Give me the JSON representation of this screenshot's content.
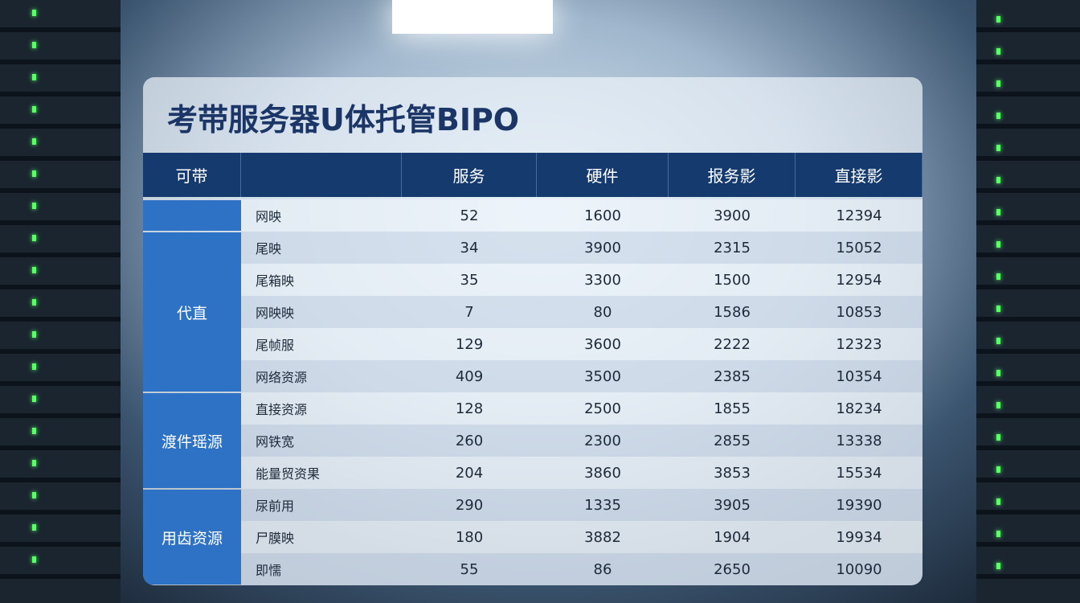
{
  "header": {
    "title": "考带服务器U体托管BIPO"
  },
  "table": {
    "columns": [
      "可带",
      "服务",
      "硬件",
      "报务影",
      "直接影"
    ],
    "groups": [
      {
        "label": "",
        "rows": 1
      },
      {
        "label": "代直",
        "rows": 5
      },
      {
        "label": "渡件瑶源",
        "rows": 3
      },
      {
        "label": "用齿资源",
        "rows": 3
      }
    ],
    "rows": [
      [
        "网映",
        52,
        1600,
        3900,
        12394
      ],
      [
        "尾映",
        34,
        3900,
        2315,
        15052
      ],
      [
        "尾箱映",
        35,
        3300,
        1500,
        12954
      ],
      [
        "网映映",
        7,
        80,
        1586,
        10853
      ],
      [
        "尾帧服",
        129,
        3600,
        2222,
        12323
      ],
      [
        "网络资源",
        409,
        3500,
        2385,
        10354
      ],
      [
        "直接资源",
        128,
        2500,
        1855,
        18234
      ],
      [
        "网铁宽",
        260,
        2300,
        2855,
        13338
      ],
      [
        "能量贸资果",
        204,
        3860,
        3853,
        15534
      ],
      [
        "尿前用",
        290,
        1335,
        3905,
        19390
      ],
      [
        "尸膜映",
        180,
        3882,
        1904,
        19934
      ],
      [
        "即懦",
        55,
        86,
        2650,
        10090
      ]
    ]
  }
}
